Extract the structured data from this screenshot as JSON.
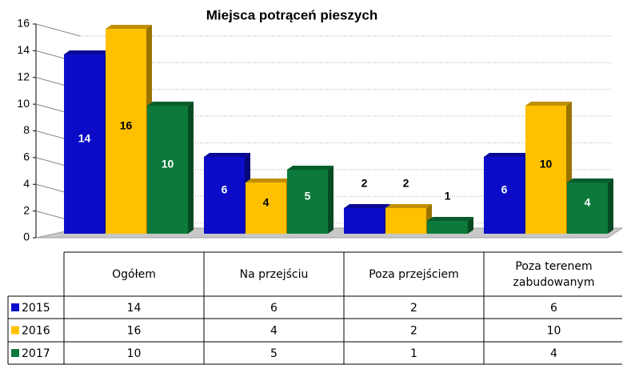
{
  "chart_data": {
    "type": "bar3d",
    "title": "Miejsca potrąceń pieszych",
    "categories": [
      "Ogółem",
      "Na przejściu",
      "Poza przejściem",
      "Poza terenem zabudowanym"
    ],
    "series": [
      {
        "name": "2015",
        "color": "#0c0cc8",
        "values": [
          14,
          6,
          2,
          6
        ]
      },
      {
        "name": "2016",
        "color": "#ffc000",
        "values": [
          16,
          4,
          2,
          10
        ]
      },
      {
        "name": "2017",
        "color": "#0b7a3a",
        "values": [
          10,
          5,
          1,
          4
        ]
      }
    ],
    "ylim": [
      0,
      16
    ],
    "yticks": [
      0,
      2,
      4,
      6,
      8,
      10,
      12,
      14,
      16
    ],
    "grid": true
  }
}
